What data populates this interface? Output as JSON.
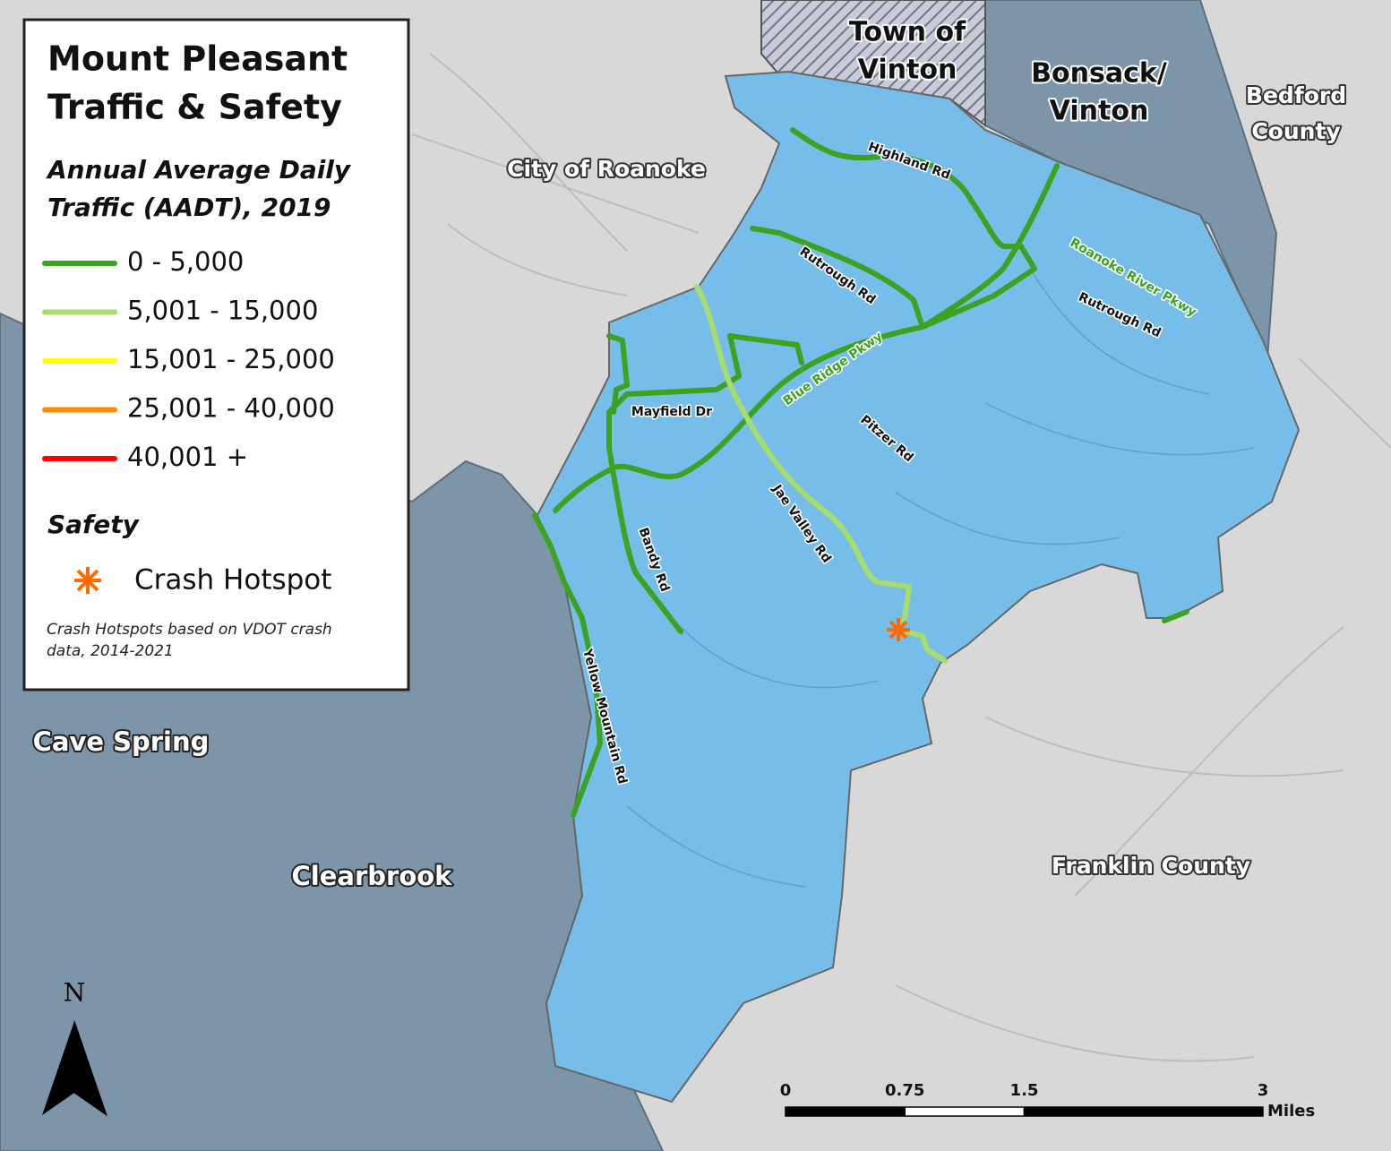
{
  "legend": {
    "title": [
      "Mount Pleasant",
      "Traffic & Safety"
    ],
    "aadt_heading": [
      "Annual Average Daily",
      "Traffic (AADT), 2019"
    ],
    "aadt_classes": [
      {
        "label": "0 - 5,000",
        "color": "#3aa31f"
      },
      {
        "label": "5,001 - 15,000",
        "color": "#a8dc6c"
      },
      {
        "label": "15,001 - 25,000",
        "color": "#ffff00"
      },
      {
        "label": "25,001 - 40,000",
        "color": "#ff8c00"
      },
      {
        "label": "40,001 +",
        "color": "#ff0000"
      }
    ],
    "safety_heading": "Safety",
    "hotspot_label": "Crash Hotspot",
    "note": [
      "Crash Hotspots based on VDOT crash",
      "data, 2014-2021"
    ]
  },
  "places": [
    {
      "lines": [
        "Town of",
        "Vinton"
      ]
    },
    {
      "lines": [
        "Bonsack/",
        "Vinton"
      ]
    },
    {
      "lines": [
        "Bedford",
        "County"
      ]
    },
    {
      "lines": [
        "City of Roanoke"
      ]
    },
    {
      "lines": [
        "Cave Spring"
      ]
    },
    {
      "lines": [
        "Clearbrook"
      ]
    },
    {
      "lines": [
        "Franklin County"
      ]
    }
  ],
  "road_labels": [
    "Highland Rd",
    "Rutrough Rd",
    "Roanoke River Pkwy",
    "Rutrough Rd",
    "Blue Ridge Pkwy",
    "Mayfield Dr",
    "Pitzer Rd",
    "Jae Valley Rd",
    "Bandy Rd",
    "Yellow Mountain Rd"
  ],
  "north": "N",
  "scale_bar": {
    "ticks": [
      0,
      0.75,
      1.5,
      3
    ],
    "unit": "Miles"
  }
}
